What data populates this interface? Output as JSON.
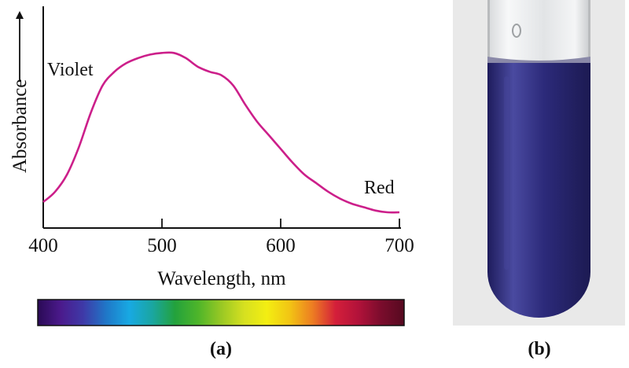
{
  "chart_data": {
    "type": "line",
    "title": "",
    "xlabel": "Wavelength, nm",
    "ylabel": "Absorbance",
    "xlim": [
      400,
      700
    ],
    "x_ticks": [
      "400",
      "500",
      "600",
      "700"
    ],
    "y_ticks": [],
    "grid": false,
    "series": [
      {
        "x": [
          400,
          410,
          420,
          430,
          440,
          450,
          460,
          470,
          480,
          490,
          500,
          510,
          520,
          530,
          540,
          550,
          560,
          570,
          580,
          590,
          600,
          610,
          620,
          630,
          640,
          650,
          660,
          670,
          680,
          690,
          700
        ],
        "y": [
          0.06,
          0.12,
          0.22,
          0.38,
          0.58,
          0.74,
          0.82,
          0.87,
          0.9,
          0.92,
          0.93,
          0.93,
          0.9,
          0.85,
          0.82,
          0.8,
          0.74,
          0.63,
          0.53,
          0.45,
          0.37,
          0.29,
          0.22,
          0.17,
          0.12,
          0.08,
          0.05,
          0.03,
          0.01,
          0.0,
          0.0
        ],
        "color": "#cc1f8a"
      }
    ],
    "annotations": [
      "Violet",
      "Red"
    ]
  },
  "spectrum_bar": {
    "colors": [
      "#2a0a55",
      "#4b1a8c",
      "#3e3aa8",
      "#1f78c8",
      "#18a9e3",
      "#1aa6a0",
      "#23a23c",
      "#4eb52a",
      "#98c824",
      "#d6e020",
      "#f3ee12",
      "#f2c414",
      "#ed7d22",
      "#d41f3a",
      "#b2123a",
      "#7a0c2c",
      "#560a20"
    ]
  },
  "panels": {
    "a": "(a)",
    "b": "(b)"
  },
  "photo": {
    "solution_color": "#2c2a7a",
    "tube_highlight": "#4a4aa0",
    "background": "#e9e9e9"
  }
}
